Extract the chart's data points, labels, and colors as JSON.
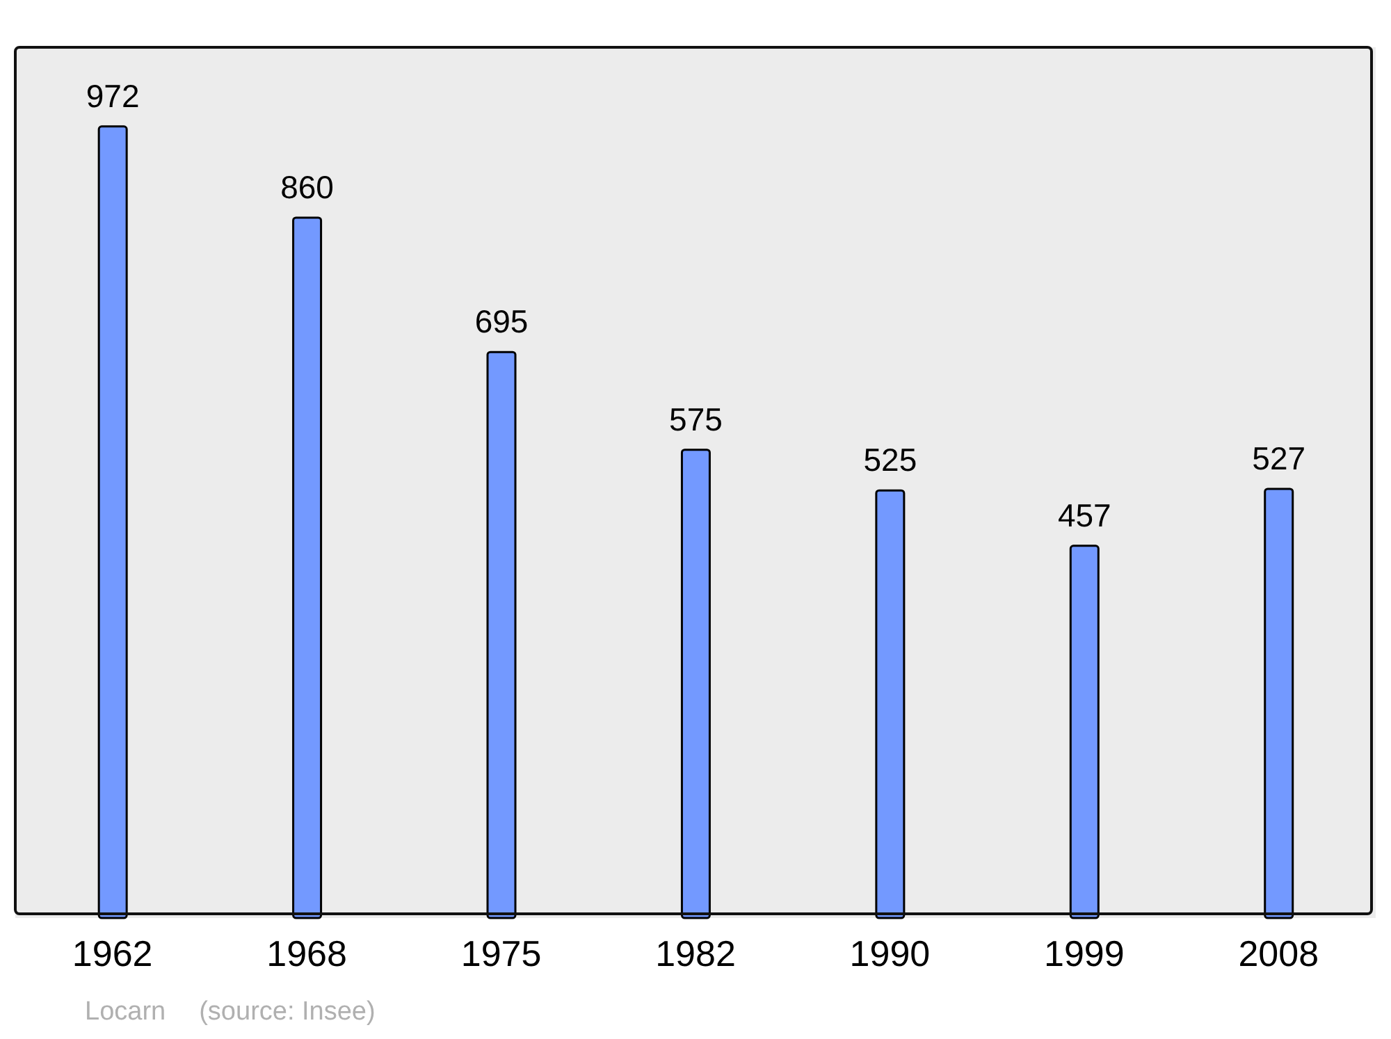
{
  "chart_data": {
    "type": "bar",
    "categories": [
      "1962",
      "1968",
      "1975",
      "1982",
      "1990",
      "1999",
      "2008"
    ],
    "values": [
      972,
      860,
      695,
      575,
      525,
      457,
      527
    ],
    "color": "#7399ff",
    "data_labels": true,
    "annotations": [
      "Locarn",
      "(source: Insee)"
    ]
  }
}
